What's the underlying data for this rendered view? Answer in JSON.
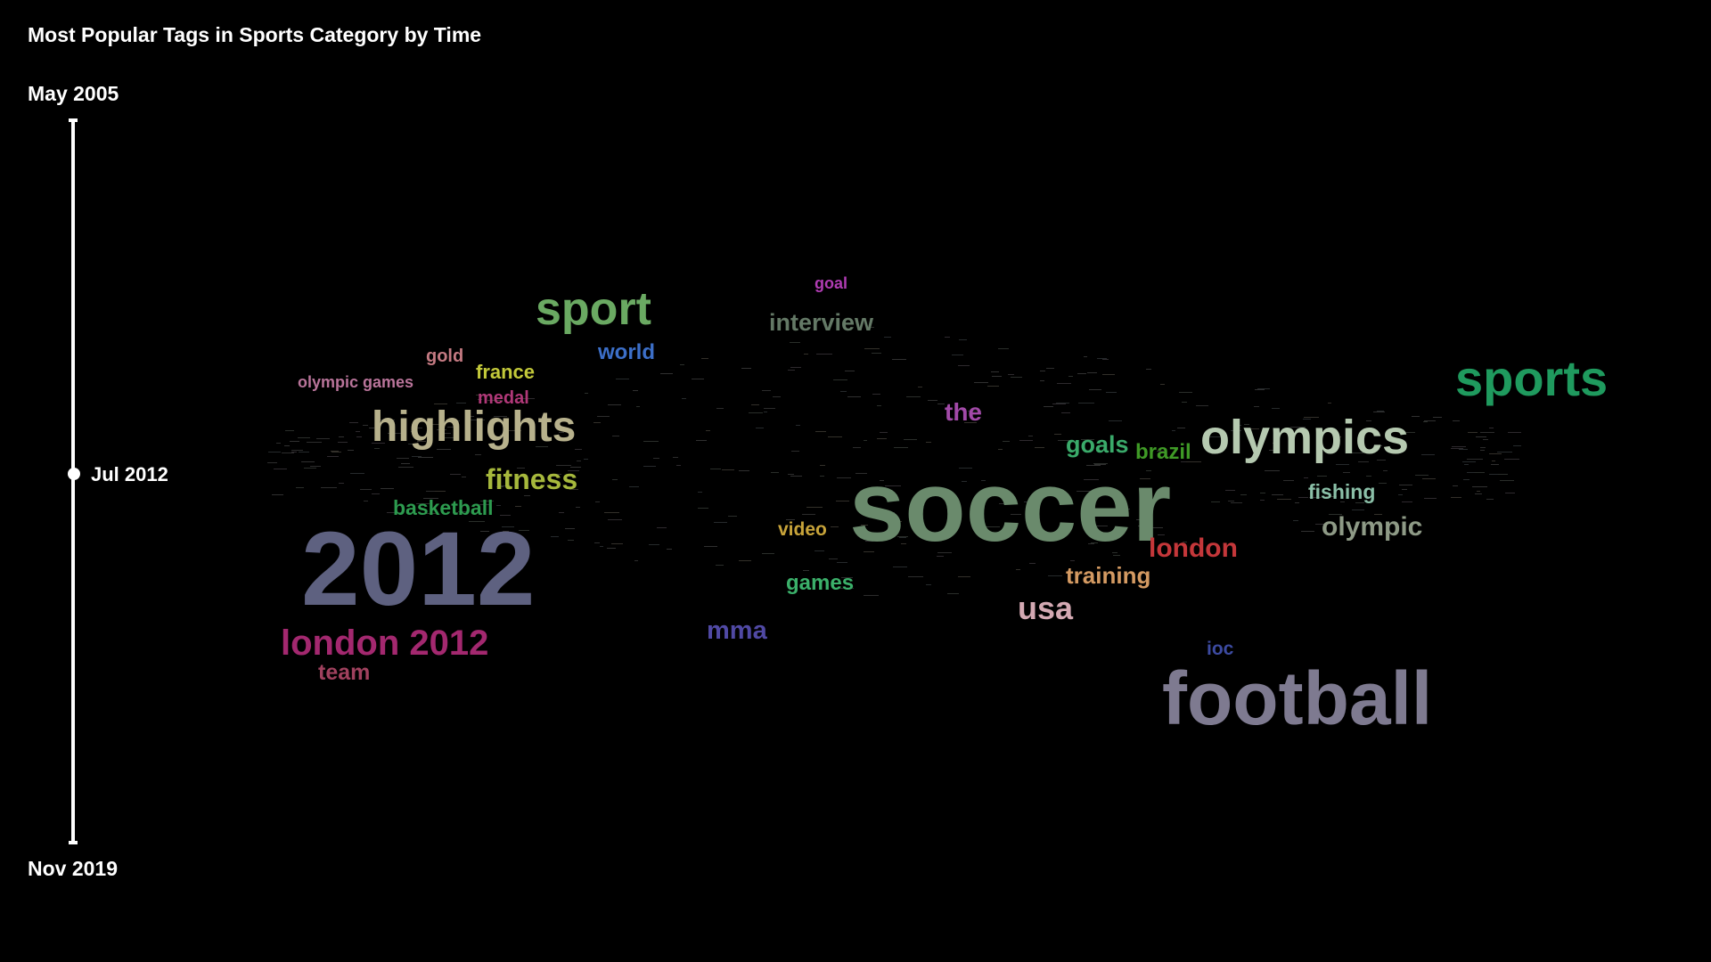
{
  "title": "Most Popular Tags in Sports Category by Time",
  "timeline": {
    "start_label": "May 2005",
    "end_label": "Nov 2019",
    "current_label": "Jul 2012",
    "position_fraction": 0.49
  },
  "tags": [
    {
      "text": "soccer",
      "color": "#6a8a6c"
    },
    {
      "text": "2012",
      "color": "#5e6180"
    },
    {
      "text": "football",
      "color": "#7e7a90"
    },
    {
      "text": "sports",
      "color": "#1f9a5e"
    },
    {
      "text": "olympics",
      "color": "#b5c9b0"
    },
    {
      "text": "highlights",
      "color": "#b7b18c"
    },
    {
      "text": "sport",
      "color": "#6aa962"
    },
    {
      "text": "london 2012",
      "color": "#a3286f"
    },
    {
      "text": "fitness",
      "color": "#a6b83c"
    },
    {
      "text": "london",
      "color": "#c4373a"
    },
    {
      "text": "olympic",
      "color": "#8e9a86"
    },
    {
      "text": "usa",
      "color": "#d4a9b3"
    },
    {
      "text": "interview",
      "color": "#647966"
    },
    {
      "text": "mma",
      "color": "#5049a4"
    },
    {
      "text": "training",
      "color": "#d49a62"
    },
    {
      "text": "basketball",
      "color": "#2d9b4f"
    },
    {
      "text": "goals",
      "color": "#3aaa6a"
    },
    {
      "text": "brazil",
      "color": "#3f9a26"
    },
    {
      "text": "the",
      "color": "#a24aa8"
    },
    {
      "text": "world",
      "color": "#3c6fc8"
    },
    {
      "text": "fishing",
      "color": "#8bc0a8"
    },
    {
      "text": "games",
      "color": "#3bb06a"
    },
    {
      "text": "team",
      "color": "#a0415e"
    },
    {
      "text": "france",
      "color": "#c3c93a"
    },
    {
      "text": "medal",
      "color": "#b03878"
    },
    {
      "text": "gold",
      "color": "#c47a82"
    },
    {
      "text": "olympic games",
      "color": "#b9749a"
    },
    {
      "text": "video",
      "color": "#c8a43a"
    },
    {
      "text": "goal",
      "color": "#b03cb3"
    },
    {
      "text": "ioc",
      "color": "#3c4aa0"
    }
  ]
}
